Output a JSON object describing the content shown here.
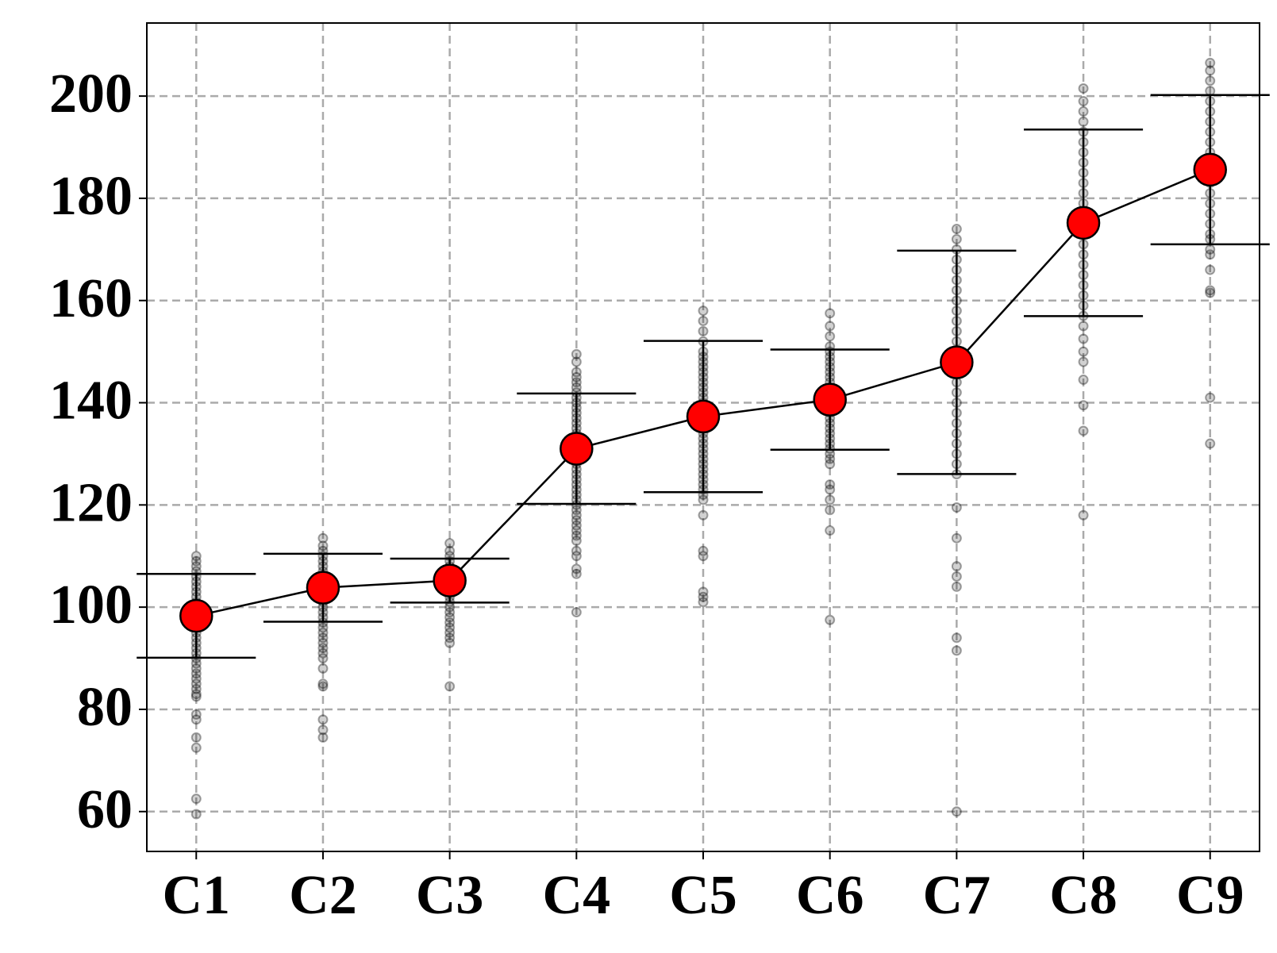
{
  "chart_data": {
    "type": "errorbar",
    "categories": [
      "C1",
      "C2",
      "C3",
      "C4",
      "C5",
      "C6",
      "C7",
      "C8",
      "C9"
    ],
    "values": [
      98.3,
      103.8,
      105.2,
      131.0,
      137.3,
      140.6,
      147.9,
      175.2,
      185.6
    ],
    "errors": [
      8.2,
      6.65,
      4.3,
      10.8,
      14.8,
      9.8,
      21.85,
      18.25,
      14.6
    ],
    "samples": [
      [
        110,
        109,
        108,
        107,
        106,
        105,
        104,
        103,
        102,
        101,
        100,
        99,
        98,
        97,
        96,
        95,
        94,
        93,
        92,
        91,
        90,
        89,
        88,
        87,
        86,
        85,
        84,
        83,
        82.5,
        79,
        78,
        74.5,
        72.5,
        62.5,
        59.5
      ],
      [
        113.5,
        112,
        111,
        110,
        109,
        108,
        107,
        106,
        105,
        104,
        103,
        102,
        101,
        100,
        99,
        98,
        97,
        96,
        95,
        94,
        93,
        92,
        91,
        90,
        88,
        85,
        84.5,
        78,
        76,
        74.5
      ],
      [
        112.5,
        111,
        110,
        109,
        108,
        107,
        106,
        105,
        104,
        103,
        102,
        101,
        100,
        99,
        98,
        97,
        96,
        95,
        94,
        93,
        84.5
      ],
      [
        149.5,
        148,
        146,
        145,
        144,
        143,
        142,
        141,
        140,
        139,
        138,
        137,
        136,
        135,
        134,
        133,
        132,
        131,
        130,
        129,
        128,
        127,
        126,
        125,
        124,
        123,
        122,
        121,
        120,
        119,
        118,
        117,
        116,
        115,
        114,
        113,
        111,
        110,
        107.5,
        106.5,
        99
      ],
      [
        158,
        156,
        154,
        152,
        150,
        149,
        148,
        147,
        146,
        145,
        144,
        143,
        142,
        141,
        140,
        139,
        138,
        137,
        136,
        135,
        134,
        133,
        132,
        131,
        130,
        129,
        128,
        127,
        126,
        125,
        124,
        123,
        122,
        121,
        118,
        111,
        110,
        103,
        102,
        101
      ],
      [
        157.5,
        155,
        153,
        151,
        150,
        149,
        148,
        147,
        146,
        145,
        144,
        143,
        142,
        141,
        140,
        139,
        138,
        137,
        136,
        135,
        134,
        133,
        132,
        131,
        130,
        129,
        128,
        124,
        123,
        121,
        119,
        115,
        97.5
      ],
      [
        174,
        172,
        170,
        168,
        166,
        164,
        162,
        160,
        158,
        156,
        154,
        152,
        150,
        148,
        146,
        144,
        142,
        140,
        138,
        136,
        134,
        132,
        130,
        128,
        126,
        119.5,
        113.5,
        108,
        106,
        104,
        94,
        91.5,
        60
      ],
      [
        201.5,
        199,
        197,
        195,
        193,
        191,
        189,
        187,
        185,
        183,
        181,
        179,
        177,
        175,
        173,
        171,
        169,
        167,
        165,
        163,
        161,
        159,
        157,
        155,
        152.5,
        150,
        148,
        144.5,
        139.5,
        134.5,
        118
      ],
      [
        206.5,
        205,
        203,
        201,
        199,
        197,
        195,
        193,
        191,
        189,
        187,
        185,
        183,
        181,
        179,
        177,
        175,
        173,
        172,
        170,
        169,
        166,
        162,
        161.5,
        141,
        132
      ]
    ],
    "color": "#ff0000",
    "line_color": "#000000",
    "sample_color": "#000000",
    "ylim": [
      52.2,
      214.3
    ],
    "yticks": [
      60,
      80,
      100,
      120,
      140,
      160,
      180,
      200
    ],
    "grid": true
  }
}
